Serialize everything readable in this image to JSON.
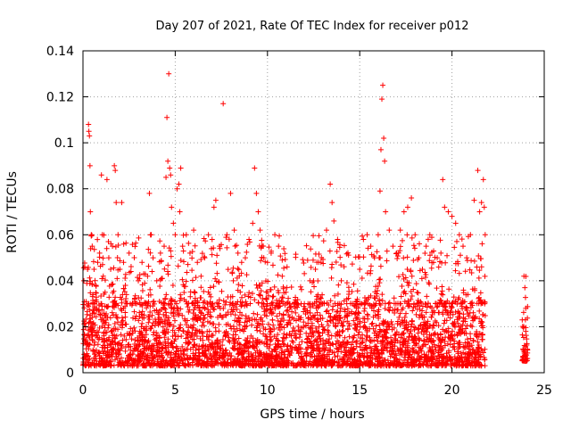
{
  "chart_data": {
    "type": "scatter",
    "title": "Day 207 of 2021, Rate Of TEC Index for receiver p012",
    "xlabel": "GPS time / hours",
    "ylabel": "ROTI / TECUs",
    "xlim": [
      0,
      25
    ],
    "ylim": [
      0,
      0.14
    ],
    "x_ticks": [
      0,
      5,
      10,
      15,
      20,
      25
    ],
    "x_tick_labels": [
      "0",
      "5",
      "10",
      "15",
      "20",
      "25"
    ],
    "y_ticks": [
      0,
      0.02,
      0.04,
      0.06,
      0.08,
      0.1,
      0.12,
      0.14
    ],
    "y_tick_labels": [
      "0",
      "0.02",
      "0.04",
      "0.06",
      "0.08",
      "0.1",
      "0.12",
      "0.14"
    ],
    "grid": true,
    "marker": "plus",
    "series": [
      {
        "color": "#ff0000",
        "points": [
          [
            0.05,
            0.04
          ],
          [
            0.1,
            0.046
          ],
          [
            0.15,
            0.02
          ],
          [
            0.2,
            0.012
          ],
          [
            0.25,
            0.045
          ],
          [
            0.3,
            0.108
          ],
          [
            0.32,
            0.105
          ],
          [
            0.35,
            0.103
          ],
          [
            0.38,
            0.09
          ],
          [
            0.4,
            0.07
          ],
          [
            0.45,
            0.06
          ],
          [
            0.5,
            0.055
          ],
          [
            0.6,
            0.045
          ],
          [
            0.7,
            0.038
          ],
          [
            0.8,
            0.048
          ],
          [
            0.9,
            0.052
          ],
          [
            1.0,
            0.086
          ],
          [
            1.05,
            0.06
          ],
          [
            1.1,
            0.042
          ],
          [
            1.2,
            0.035
          ],
          [
            1.3,
            0.084
          ],
          [
            1.4,
            0.05
          ],
          [
            1.5,
            0.045
          ],
          [
            1.6,
            0.055
          ],
          [
            1.7,
            0.09
          ],
          [
            1.75,
            0.088
          ],
          [
            1.8,
            0.074
          ],
          [
            1.9,
            0.06
          ],
          [
            2.0,
            0.045
          ],
          [
            2.1,
            0.074
          ],
          [
            2.2,
            0.048
          ],
          [
            2.3,
            0.038
          ],
          [
            2.5,
            0.052
          ],
          [
            2.6,
            0.044
          ],
          [
            2.8,
            0.032
          ],
          [
            3.0,
            0.04
          ],
          [
            3.2,
            0.048
          ],
          [
            3.4,
            0.03
          ],
          [
            3.5,
            0.042
          ],
          [
            3.6,
            0.078
          ],
          [
            3.7,
            0.06
          ],
          [
            3.8,
            0.05
          ],
          [
            4.0,
            0.04
          ],
          [
            4.2,
            0.052
          ],
          [
            4.4,
            0.055
          ],
          [
            4.5,
            0.085
          ],
          [
            4.55,
            0.111
          ],
          [
            4.6,
            0.092
          ],
          [
            4.65,
            0.13
          ],
          [
            4.7,
            0.089
          ],
          [
            4.75,
            0.086
          ],
          [
            4.8,
            0.072
          ],
          [
            4.9,
            0.065
          ],
          [
            5.0,
            0.06
          ],
          [
            5.1,
            0.08
          ],
          [
            5.2,
            0.082
          ],
          [
            5.25,
            0.07
          ],
          [
            5.3,
            0.089
          ],
          [
            5.4,
            0.055
          ],
          [
            5.6,
            0.06
          ],
          [
            5.8,
            0.052
          ],
          [
            6.0,
            0.062
          ],
          [
            6.2,
            0.048
          ],
          [
            6.4,
            0.042
          ],
          [
            6.6,
            0.05
          ],
          [
            6.8,
            0.06
          ],
          [
            7.0,
            0.058
          ],
          [
            7.1,
            0.072
          ],
          [
            7.2,
            0.075
          ],
          [
            7.4,
            0.055
          ],
          [
            7.6,
            0.117
          ],
          [
            7.8,
            0.06
          ],
          [
            8.0,
            0.078
          ],
          [
            8.2,
            0.062
          ],
          [
            8.4,
            0.052
          ],
          [
            8.6,
            0.048
          ],
          [
            8.8,
            0.05
          ],
          [
            9.0,
            0.058
          ],
          [
            9.2,
            0.065
          ],
          [
            9.3,
            0.089
          ],
          [
            9.4,
            0.078
          ],
          [
            9.5,
            0.07
          ],
          [
            9.6,
            0.062
          ],
          [
            9.7,
            0.055
          ],
          [
            9.8,
            0.05
          ],
          [
            10.0,
            0.048
          ],
          [
            10.2,
            0.052
          ],
          [
            10.4,
            0.06
          ],
          [
            10.6,
            0.055
          ],
          [
            10.8,
            0.042
          ],
          [
            11.0,
            0.035
          ],
          [
            11.2,
            0.03
          ],
          [
            11.5,
            0.028
          ],
          [
            12.0,
            0.03
          ],
          [
            12.3,
            0.04
          ],
          [
            12.6,
            0.045
          ],
          [
            12.9,
            0.048
          ],
          [
            13.2,
            0.062
          ],
          [
            13.4,
            0.082
          ],
          [
            13.5,
            0.074
          ],
          [
            13.6,
            0.066
          ],
          [
            13.8,
            0.058
          ],
          [
            14.0,
            0.04
          ],
          [
            14.3,
            0.032
          ],
          [
            14.6,
            0.03
          ],
          [
            15.0,
            0.045
          ],
          [
            15.2,
            0.058
          ],
          [
            15.4,
            0.06
          ],
          [
            15.6,
            0.055
          ],
          [
            15.8,
            0.05
          ],
          [
            16.0,
            0.06
          ],
          [
            16.1,
            0.079
          ],
          [
            16.15,
            0.097
          ],
          [
            16.2,
            0.119
          ],
          [
            16.25,
            0.125
          ],
          [
            16.3,
            0.102
          ],
          [
            16.35,
            0.092
          ],
          [
            16.4,
            0.07
          ],
          [
            16.6,
            0.062
          ],
          [
            16.8,
            0.055
          ],
          [
            17.0,
            0.052
          ],
          [
            17.2,
            0.062
          ],
          [
            17.4,
            0.07
          ],
          [
            17.6,
            0.072
          ],
          [
            17.8,
            0.076
          ],
          [
            18.0,
            0.06
          ],
          [
            18.2,
            0.05
          ],
          [
            18.4,
            0.045
          ],
          [
            18.6,
            0.055
          ],
          [
            18.8,
            0.06
          ],
          [
            19.0,
            0.048
          ],
          [
            19.2,
            0.05
          ],
          [
            19.4,
            0.052
          ],
          [
            19.5,
            0.084
          ],
          [
            19.6,
            0.072
          ],
          [
            19.8,
            0.07
          ],
          [
            20.0,
            0.068
          ],
          [
            20.2,
            0.065
          ],
          [
            20.4,
            0.06
          ],
          [
            20.6,
            0.055
          ],
          [
            20.8,
            0.05
          ],
          [
            21.0,
            0.06
          ],
          [
            21.2,
            0.075
          ],
          [
            21.4,
            0.088
          ],
          [
            21.5,
            0.07
          ],
          [
            21.6,
            0.074
          ],
          [
            21.7,
            0.084
          ],
          [
            21.75,
            0.072
          ],
          [
            21.8,
            0.06
          ],
          [
            23.9,
            0.042
          ],
          [
            23.95,
            0.037
          ],
          [
            24.0,
            0.028
          ],
          [
            24.0,
            0.018
          ],
          [
            24.05,
            0.012
          ]
        ],
        "dense_bands": [
          {
            "x": [
              0.0,
              21.8
            ],
            "y": [
              0.003,
              0.03
            ]
          },
          {
            "x": [
              23.8,
              24.1
            ],
            "y": [
              0.005,
              0.02
            ]
          }
        ]
      }
    ]
  }
}
